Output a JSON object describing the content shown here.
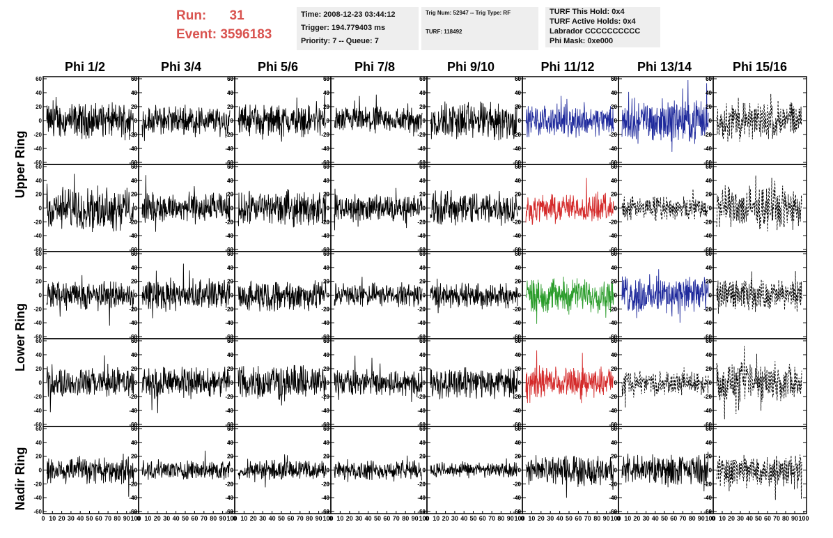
{
  "header": {
    "run_label": "Run:",
    "run_value": "31",
    "event_label": "Event:",
    "event_value": "3596183",
    "box1": [
      "Time: 2008-12-23 03:44:12",
      "Trigger: 194.779403 ms",
      "Priority: 7 -- Queue: 7"
    ],
    "box2": [
      "Trig Num: 52947 -- Trig Type: RF",
      "TURF: 118492"
    ],
    "box3": [
      "TURF This Hold: 0x4",
      "TURF Active Holds: 0x4",
      "Labrador CCCCCCCCCC",
      "Phi Mask: 0xe000"
    ]
  },
  "columns": [
    "Phi 1/2",
    "Phi 3/4",
    "Phi 5/6",
    "Phi 7/8",
    "Phi 9/10",
    "Phi 11/12",
    "Phi 13/14",
    "Phi 15/16"
  ],
  "ring_labels": [
    {
      "text": "Upper Ring"
    },
    {
      "text": "Lower Ring"
    },
    {
      "text": "Nadir Ring"
    }
  ],
  "chart_data": {
    "type": "line",
    "xlim": [
      0,
      100
    ],
    "ylim": [
      -60,
      60
    ],
    "y_ticks": [
      "60",
      "40",
      "20",
      "0",
      "-20",
      "-40",
      "-60"
    ],
    "x_ticks": [
      "0",
      "10",
      "20",
      "30",
      "40",
      "50",
      "60",
      "70",
      "80",
      "90",
      "100"
    ],
    "colors": {
      "black": "#000000",
      "blue": "#1f2a9c",
      "red": "#d42a2a",
      "green": "#2a9c2a"
    },
    "panels": [
      [
        "black",
        "black",
        "black",
        "black",
        "black",
        "blue",
        "blue",
        "black-dashed"
      ],
      [
        "black",
        "black",
        "black",
        "black",
        "black",
        "red",
        "black-dashed",
        "black-dashed"
      ],
      [
        "black",
        "black",
        "black",
        "black",
        "black",
        "green",
        "blue",
        "black-dashed"
      ],
      [
        "black",
        "black",
        "black",
        "black",
        "black",
        "red",
        "black-dashed",
        "black-dashed"
      ],
      [
        "black",
        "black",
        "black",
        "black",
        "black",
        "black",
        "black",
        "black-dashed"
      ]
    ],
    "amplitudes": [
      [
        18,
        15,
        16,
        14,
        20,
        16,
        22,
        20
      ],
      [
        22,
        16,
        18,
        14,
        18,
        15,
        12,
        22
      ],
      [
        15,
        16,
        16,
        12,
        13,
        18,
        20,
        16
      ],
      [
        15,
        16,
        18,
        14,
        16,
        16,
        12,
        20
      ],
      [
        15,
        10,
        10,
        10,
        8,
        15,
        16,
        18
      ]
    ]
  }
}
